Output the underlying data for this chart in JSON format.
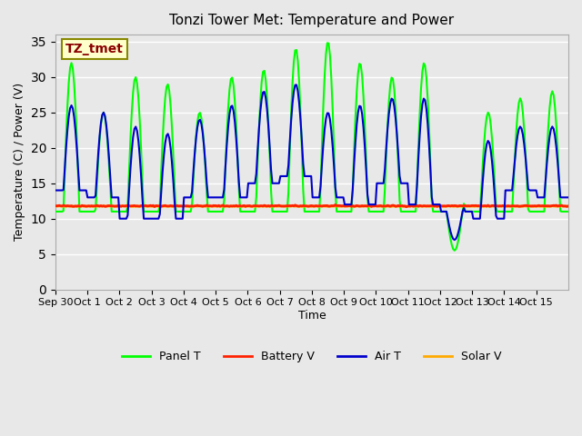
{
  "title": "Tonzi Tower Met: Temperature and Power",
  "xlabel": "Time",
  "ylabel": "Temperature (C) / Power (V)",
  "ylim": [
    0,
    36
  ],
  "yticks": [
    0,
    5,
    10,
    15,
    20,
    25,
    30,
    35
  ],
  "x_labels": [
    "Sep 30",
    "Oct 1",
    "Oct 2",
    "Oct 3",
    "Oct 4",
    "Oct 5",
    "Oct 6",
    "Oct 7",
    "Oct 8",
    "Oct 9",
    "Oct 10",
    "Oct 11",
    "Oct 12",
    "Oct 13",
    "Oct 14",
    "Oct 15"
  ],
  "background_color": "#e8e8e8",
  "plot_bg_color": "#e8e8e8",
  "grid_color": "#ffffff",
  "annotation_text": "TZ_tmet",
  "annotation_bg": "#ffffcc",
  "annotation_border": "#888800",
  "annotation_text_color": "#8b0000",
  "panel_t_color": "#00ff00",
  "battery_v_color": "#ff2200",
  "air_t_color": "#0000cc",
  "solar_v_color": "#ffaa00",
  "line_width": 1.5,
  "n_days": 16
}
